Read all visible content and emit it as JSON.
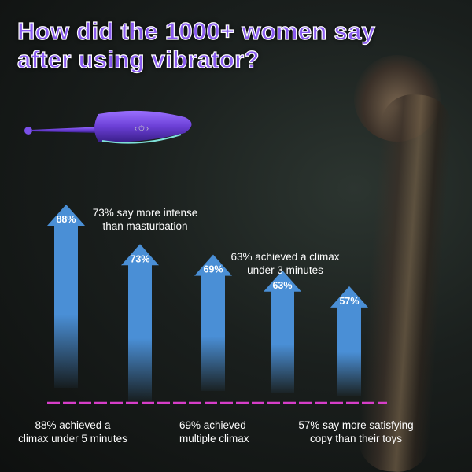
{
  "title_line1": "How did the 1000+ women say",
  "title_line2": "after using  vibrator?",
  "colors": {
    "title": "#8a5cf0",
    "arrow": "#4a8fd6",
    "baseline": "#d63ec8",
    "device": "#6b3fd6"
  },
  "chart_data": {
    "type": "bar",
    "style": "arrows",
    "values": [
      88,
      73,
      69,
      63,
      57
    ],
    "data_labels": [
      "88%",
      "73%",
      "69%",
      "63%",
      "57%"
    ],
    "annotations": [
      "88% achieved a climax under 5 minutes",
      "73% say more intense than masturbation",
      "69% achieved multiple climax",
      "63% achieved a climax under 3 minutes",
      "57% say more satisfying copy than their toys"
    ],
    "baseline": "dashed"
  },
  "labels": {
    "a1": [
      "88% achieved a",
      "climax under 5 minutes"
    ],
    "a2": [
      "73% say more intense",
      "than masturbation"
    ],
    "a3": [
      "69% achieved",
      "multiple climax"
    ],
    "a4": [
      "63% achieved a climax",
      "under 3 minutes"
    ],
    "a5": [
      "57% say more satisfying",
      "copy than their toys"
    ]
  }
}
